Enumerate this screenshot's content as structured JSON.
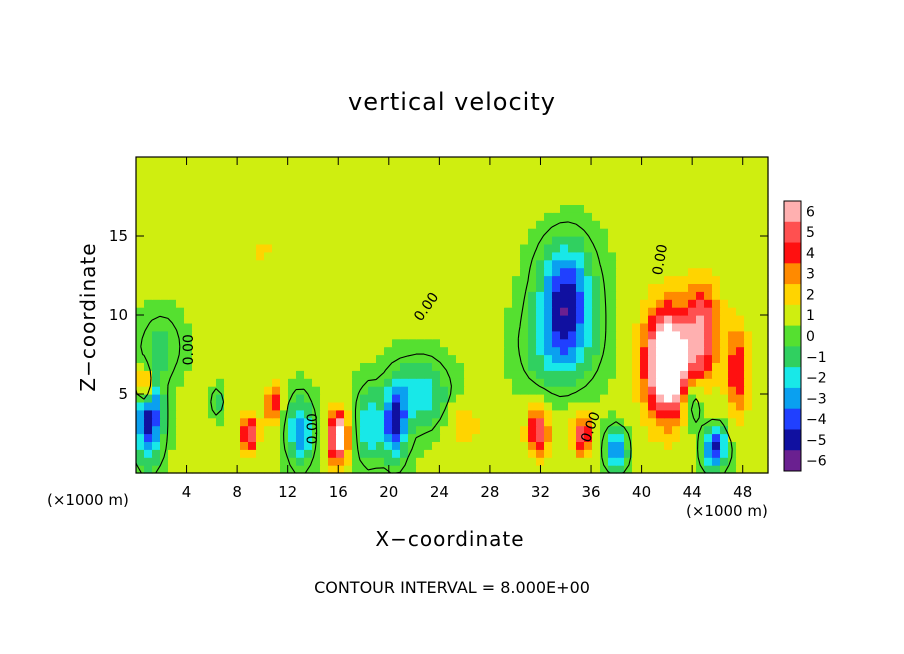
{
  "chart_data": {
    "type": "heatmap",
    "title": "vertical velocity",
    "xlabel": "X−coordinate",
    "ylabel": "Z−coordinate",
    "x_unit_left": "(×1000 m)",
    "x_unit_right": "(×1000 m)",
    "footer": "CONTOUR INTERVAL = 8.000E+00",
    "xlim": [
      0,
      50
    ],
    "ylim": [
      0,
      20
    ],
    "x_ticks": [
      4,
      8,
      12,
      16,
      20,
      24,
      28,
      32,
      36,
      40,
      44,
      48
    ],
    "y_ticks": [
      5,
      10,
      15
    ],
    "contour_label": "0.00",
    "colorbar": {
      "levels": [
        6,
        5,
        4,
        3,
        2,
        1,
        0,
        -1,
        -2,
        -3,
        -4,
        -5,
        -6
      ],
      "level_labels": [
        "6",
        "5",
        "4",
        "3",
        "2",
        "1",
        "0",
        "−1",
        "−2",
        "−3",
        "−4",
        "−5",
        "−6"
      ],
      "colors": [
        "#ffb0b0",
        "#ff5050",
        "#ff1010",
        "#ff8a00",
        "#ffd400",
        "#cfee10",
        "#55e030",
        "#30d060",
        "#18e8e8",
        "#0aa0f0",
        "#2040ff",
        "#1010a0",
        "#6a2090"
      ]
    },
    "features": [
      {
        "x": 34,
        "z": 11.2,
        "sx": 2.0,
        "sz": 3.2,
        "w": -5.5
      },
      {
        "x": 33.5,
        "z": 8,
        "sx": 2.6,
        "sz": 2.5,
        "w": -2.5
      },
      {
        "x": 42,
        "z": 7,
        "sx": 1.8,
        "sz": 3.5,
        "w": 9
      },
      {
        "x": 44.8,
        "z": 9,
        "sx": 1.4,
        "sz": 3.2,
        "w": 5
      },
      {
        "x": 47.6,
        "z": 6.5,
        "sx": 0.9,
        "sz": 3.0,
        "w": 4
      },
      {
        "x": 16,
        "z": 2.3,
        "sx": 0.75,
        "sz": 1.6,
        "w": 7.5
      },
      {
        "x": 20.5,
        "z": 3.2,
        "sx": 0.9,
        "sz": 2.2,
        "w": -5.5
      },
      {
        "x": 22.5,
        "z": 5,
        "sx": 2.0,
        "sz": 2.0,
        "w": -3
      },
      {
        "x": 1,
        "z": 3.5,
        "sx": 1.0,
        "sz": 2.5,
        "w": -6
      },
      {
        "x": 0.7,
        "z": 5.5,
        "sx": 0.5,
        "sz": 1.2,
        "w": 6
      },
      {
        "x": 9,
        "z": 2.5,
        "sx": 0.7,
        "sz": 1.2,
        "w": 5
      },
      {
        "x": 10.8,
        "z": 4.4,
        "sx": 0.5,
        "sz": 1.2,
        "w": 4.5
      },
      {
        "x": 13,
        "z": 2.6,
        "sx": 0.9,
        "sz": 2.0,
        "w": -4
      },
      {
        "x": 18.5,
        "z": 3.0,
        "sx": 1.0,
        "sz": 2.2,
        "w": -3
      },
      {
        "x": 31.8,
        "z": 2.6,
        "sx": 0.9,
        "sz": 1.5,
        "w": 5
      },
      {
        "x": 35.3,
        "z": 2.4,
        "sx": 0.8,
        "sz": 1.3,
        "w": 4.5
      },
      {
        "x": 38,
        "z": 1.5,
        "sx": 0.8,
        "sz": 1.2,
        "w": -4.5
      },
      {
        "x": 45.8,
        "z": 1.6,
        "sx": 0.9,
        "sz": 1.3,
        "w": -5.5
      },
      {
        "x": 44,
        "z": 4.5,
        "sx": 0.8,
        "sz": 1.5,
        "w": -3
      },
      {
        "x": 20,
        "z": 15,
        "sx": 5,
        "sz": 2.5,
        "w": 0.8
      },
      {
        "x": 10,
        "z": 14,
        "sx": 4,
        "sz": 3.0,
        "w": 0.9
      },
      {
        "x": 30,
        "z": 18,
        "sx": 5,
        "sz": 1.6,
        "w": 0.5
      },
      {
        "x": 2,
        "z": 8,
        "sx": 1.5,
        "sz": 2.0,
        "w": -1.5
      },
      {
        "x": 26,
        "z": 3,
        "sx": 1.5,
        "sz": 1.5,
        "w": 1.5
      },
      {
        "x": 6.5,
        "z": 4.5,
        "sx": 0.4,
        "sz": 0.8,
        "w": -2
      }
    ]
  }
}
